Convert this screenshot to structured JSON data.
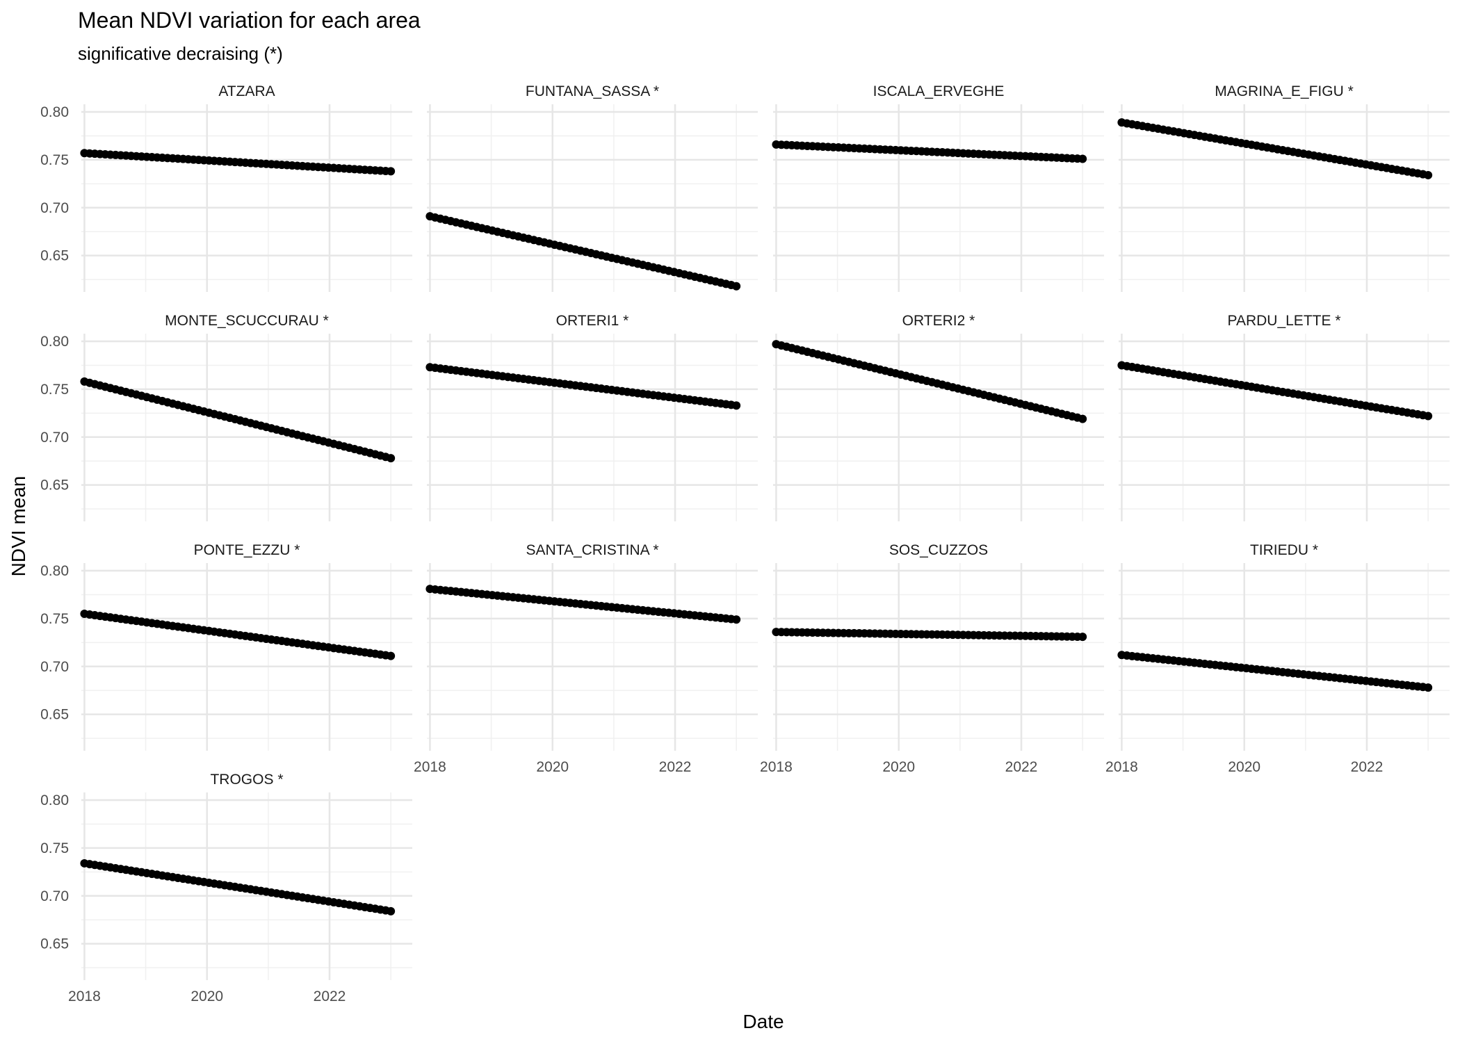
{
  "chart_data": {
    "type": "scatter",
    "title": "Mean NDVI variation for each area",
    "subtitle": "significative decraising (*)",
    "xlabel": "Date",
    "ylabel": "NDVI mean",
    "xlim": [
      2017.95,
      2023.35
    ],
    "ylim": [
      0.612,
      0.808
    ],
    "x_ticks": [
      "2018",
      "2020",
      "2022"
    ],
    "y_ticks": [
      "0.65",
      "0.70",
      "0.75",
      "0.80"
    ],
    "grid": true,
    "legend": "none",
    "point_color": "#000000",
    "x_range": [
      2018.0,
      2023.0
    ],
    "points_per_panel": 60,
    "panels": [
      {
        "name": "ATZARA",
        "start": 0.757,
        "end": 0.738
      },
      {
        "name": "FUNTANA_SASSA *",
        "start": 0.691,
        "end": 0.618
      },
      {
        "name": "ISCALA_ERVEGHE",
        "start": 0.766,
        "end": 0.751
      },
      {
        "name": "MAGRINA_E_FIGU *",
        "start": 0.789,
        "end": 0.734
      },
      {
        "name": "MONTE_SCUCCURAU *",
        "start": 0.758,
        "end": 0.678
      },
      {
        "name": "ORTERI1 *",
        "start": 0.773,
        "end": 0.733
      },
      {
        "name": "ORTERI2 *",
        "start": 0.797,
        "end": 0.719
      },
      {
        "name": "PARDU_LETTE *",
        "start": 0.775,
        "end": 0.722
      },
      {
        "name": "PONTE_EZZU *",
        "start": 0.755,
        "end": 0.711
      },
      {
        "name": "SANTA_CRISTINA *",
        "start": 0.781,
        "end": 0.749
      },
      {
        "name": "SOS_CUZZOS",
        "start": 0.736,
        "end": 0.731
      },
      {
        "name": "TIRIEDU *",
        "start": 0.712,
        "end": 0.678
      },
      {
        "name": "TROGOS *",
        "start": 0.734,
        "end": 0.684
      }
    ]
  }
}
